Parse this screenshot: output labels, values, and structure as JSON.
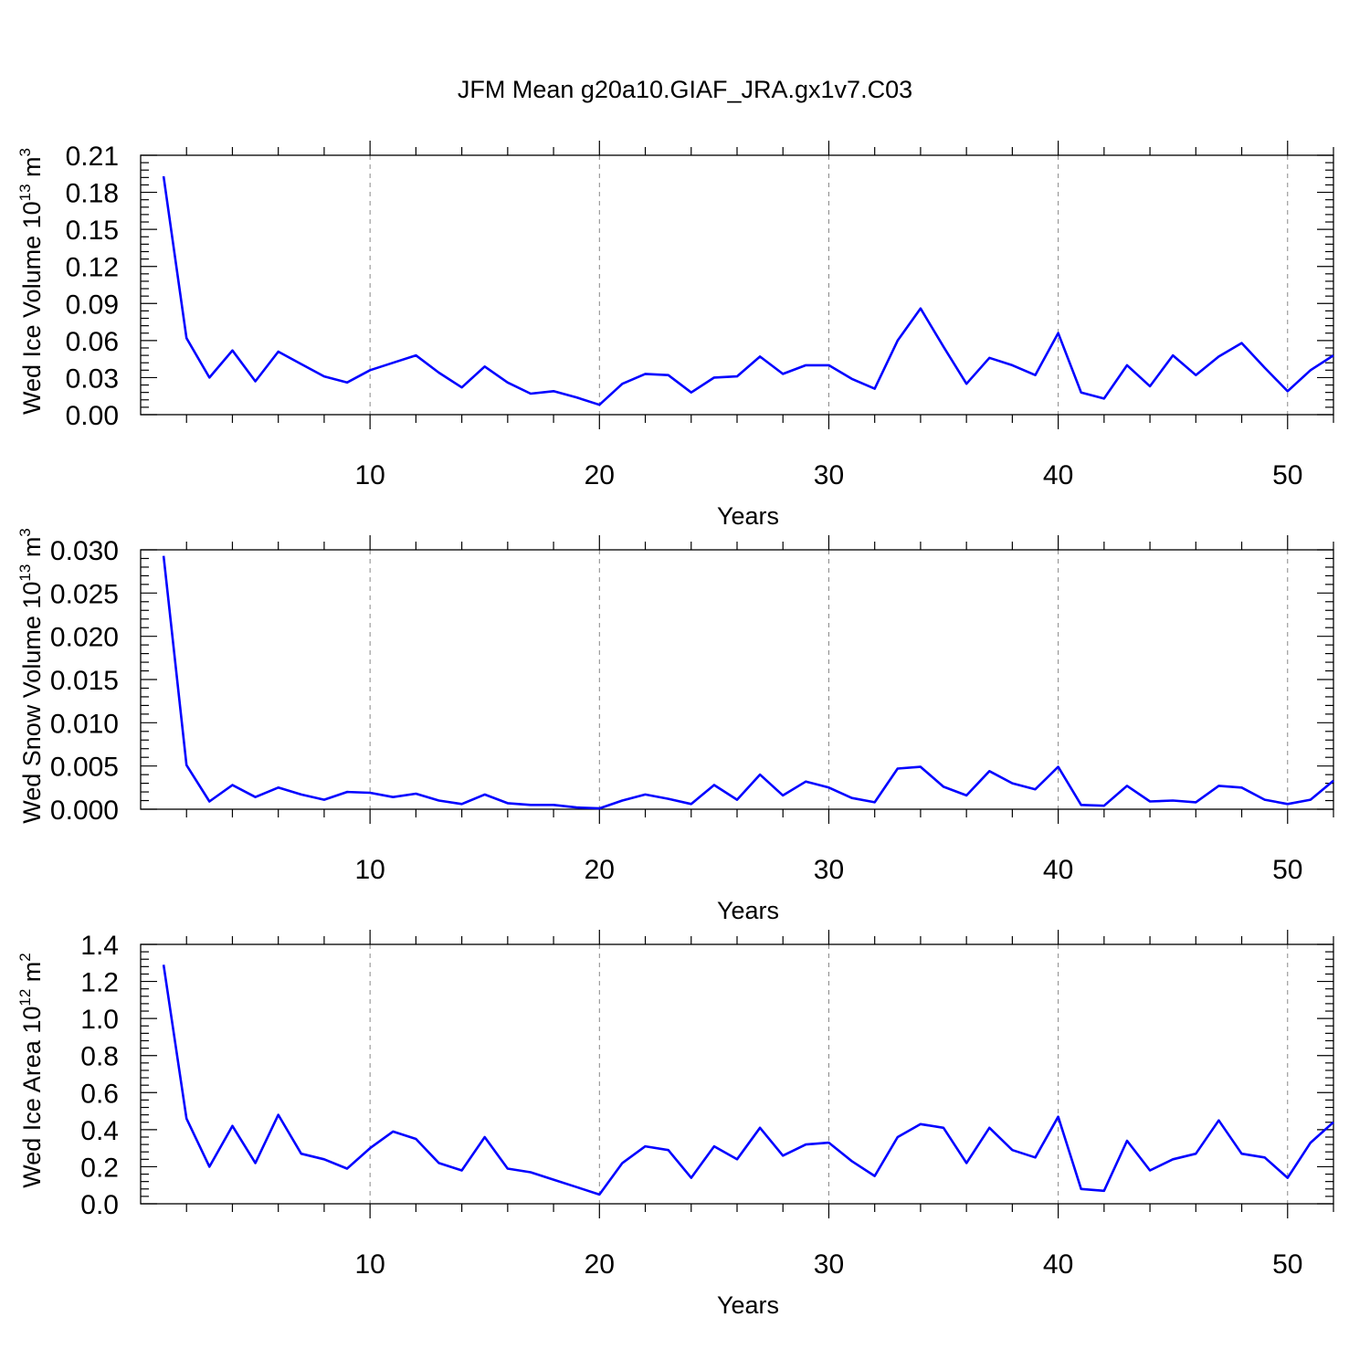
{
  "title": "JFM Mean g20a10.GIAF_JRA.gx1v7.C03",
  "colors": {
    "series": "#0000ff",
    "axis": "#000000",
    "grid": "#888888"
  },
  "chart_data": [
    {
      "type": "line",
      "title": "JFM Mean g20a10.GIAF_JRA.gx1v7.C03",
      "xlabel": "Years",
      "ylabel": {
        "text": "Wed Ice Volume 10",
        "exp": "13",
        "unit": " m",
        "unit_exp": "3"
      },
      "xlim": [
        1,
        52
      ],
      "ylim": [
        0,
        0.21
      ],
      "xticks": [
        10,
        20,
        30,
        40,
        50
      ],
      "yticks": [
        "0.00",
        "0.03",
        "0.06",
        "0.09",
        "0.12",
        "0.15",
        "0.18",
        "0.21"
      ],
      "grid": "dashed vertical at major x ticks",
      "x": [
        1,
        2,
        3,
        4,
        5,
        6,
        7,
        8,
        9,
        10,
        11,
        12,
        13,
        14,
        15,
        16,
        17,
        18,
        19,
        20,
        21,
        22,
        23,
        24,
        25,
        26,
        27,
        28,
        29,
        30,
        31,
        32,
        33,
        34,
        35,
        36,
        37,
        38,
        39,
        40,
        41,
        42,
        43,
        44,
        45,
        46,
        47,
        48,
        49,
        50,
        51,
        52
      ],
      "series": [
        {
          "values": [
            0.193,
            0.062,
            0.03,
            0.052,
            0.027,
            0.051,
            0.041,
            0.031,
            0.026,
            0.036,
            0.042,
            0.048,
            0.034,
            0.022,
            0.039,
            0.026,
            0.017,
            0.019,
            0.014,
            0.008,
            0.025,
            0.033,
            0.032,
            0.018,
            0.03,
            0.031,
            0.047,
            0.033,
            0.04,
            0.04,
            0.029,
            0.021,
            0.06,
            0.086,
            0.055,
            0.025,
            0.046,
            0.04,
            0.032,
            0.066,
            0.018,
            0.013,
            0.04,
            0.023,
            0.048,
            0.032,
            0.047,
            0.058,
            0.038,
            0.019,
            0.036,
            0.048
          ]
        }
      ]
    },
    {
      "type": "line",
      "xlabel": "Years",
      "ylabel": {
        "text": "Wed Snow Volume 10",
        "exp": "13",
        "unit": " m",
        "unit_exp": "3"
      },
      "xlim": [
        1,
        52
      ],
      "ylim": [
        0,
        0.03
      ],
      "xticks": [
        10,
        20,
        30,
        40,
        50
      ],
      "yticks": [
        "0.000",
        "0.005",
        "0.010",
        "0.015",
        "0.020",
        "0.025",
        "0.030"
      ],
      "grid": "dashed vertical at major x ticks",
      "x": [
        1,
        2,
        3,
        4,
        5,
        6,
        7,
        8,
        9,
        10,
        11,
        12,
        13,
        14,
        15,
        16,
        17,
        18,
        19,
        20,
        21,
        22,
        23,
        24,
        25,
        26,
        27,
        28,
        29,
        30,
        31,
        32,
        33,
        34,
        35,
        36,
        37,
        38,
        39,
        40,
        41,
        42,
        43,
        44,
        45,
        46,
        47,
        48,
        49,
        50,
        51,
        52
      ],
      "series": [
        {
          "values": [
            0.0293,
            0.0051,
            0.0009,
            0.0028,
            0.0014,
            0.0025,
            0.0017,
            0.0011,
            0.002,
            0.0019,
            0.0014,
            0.0018,
            0.001,
            0.0006,
            0.0017,
            0.0007,
            0.0005,
            0.0005,
            0.0002,
            0.0001,
            0.001,
            0.0017,
            0.0012,
            0.0006,
            0.0028,
            0.0011,
            0.004,
            0.0016,
            0.0032,
            0.0025,
            0.0013,
            0.0008,
            0.0047,
            0.0049,
            0.0026,
            0.0016,
            0.0044,
            0.003,
            0.0023,
            0.0049,
            0.0005,
            0.0004,
            0.0027,
            0.0009,
            0.001,
            0.0008,
            0.0027,
            0.0025,
            0.0011,
            0.0006,
            0.0011,
            0.0033
          ]
        }
      ]
    },
    {
      "type": "line",
      "xlabel": "Years",
      "ylabel": {
        "text": "Wed Ice Area 10",
        "exp": "12",
        "unit": " m",
        "unit_exp": "2"
      },
      "xlim": [
        1,
        52
      ],
      "ylim": [
        0,
        1.4
      ],
      "xticks": [
        10,
        20,
        30,
        40,
        50
      ],
      "yticks": [
        "0.0",
        "0.2",
        "0.4",
        "0.6",
        "0.8",
        "1.0",
        "1.2",
        "1.4"
      ],
      "grid": "dashed vertical at major x ticks",
      "x": [
        1,
        2,
        3,
        4,
        5,
        6,
        7,
        8,
        9,
        10,
        11,
        12,
        13,
        14,
        15,
        16,
        17,
        18,
        19,
        20,
        21,
        22,
        23,
        24,
        25,
        26,
        27,
        28,
        29,
        30,
        31,
        32,
        33,
        34,
        35,
        36,
        37,
        38,
        39,
        40,
        41,
        42,
        43,
        44,
        45,
        46,
        47,
        48,
        49,
        50,
        51,
        52
      ],
      "series": [
        {
          "values": [
            1.29,
            0.46,
            0.2,
            0.42,
            0.22,
            0.48,
            0.27,
            0.24,
            0.19,
            0.3,
            0.39,
            0.35,
            0.22,
            0.18,
            0.36,
            0.19,
            0.17,
            0.13,
            0.09,
            0.05,
            0.22,
            0.31,
            0.29,
            0.14,
            0.31,
            0.24,
            0.41,
            0.26,
            0.32,
            0.33,
            0.23,
            0.15,
            0.36,
            0.43,
            0.41,
            0.22,
            0.41,
            0.29,
            0.25,
            0.47,
            0.08,
            0.07,
            0.34,
            0.18,
            0.24,
            0.27,
            0.45,
            0.27,
            0.25,
            0.14,
            0.33,
            0.44
          ]
        }
      ]
    }
  ]
}
